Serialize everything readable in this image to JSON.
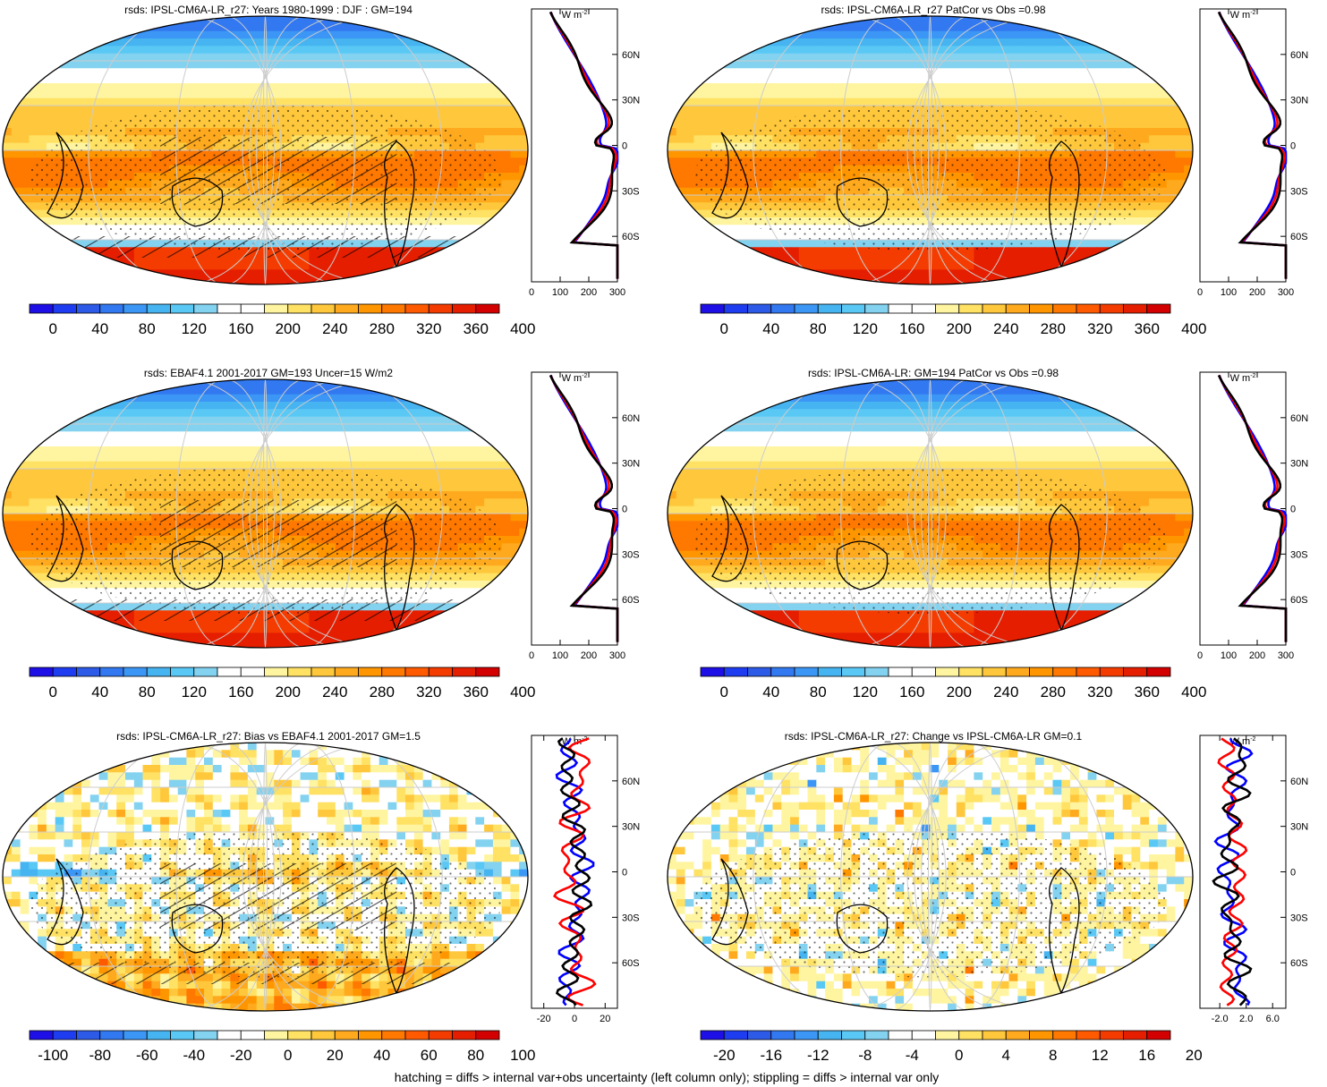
{
  "figure": {
    "footer": "hatching = diffs > internal var+obs uncertainty (left column only); stippling = diffs > internal var only",
    "panels": [
      {
        "title": "rsds: IPSL-CM6A-LR_r27: Years 1980-1999 : DJF : GM=194",
        "field": "abs",
        "hatch": true,
        "colorbar_labels": [
          "0",
          "40",
          "80",
          "120",
          "160",
          "200",
          "240",
          "280",
          "320",
          "360",
          "400"
        ],
        "profile": {
          "unit": "W m",
          "unit_sup": "-2",
          "x_labels": [
            "0",
            "100",
            "200",
            "300"
          ],
          "x_min": 0,
          "x_max": 300,
          "lat_labels": [
            "60N",
            "30N",
            "0",
            "30S",
            "60S"
          ]
        }
      },
      {
        "title": "rsds: IPSL-CM6A-LR_r27 PatCor vs Obs =0.98",
        "field": "abs",
        "hatch": false,
        "colorbar_labels": [
          "0",
          "40",
          "80",
          "120",
          "160",
          "200",
          "240",
          "280",
          "320",
          "360",
          "400"
        ],
        "profile": {
          "unit": "W m",
          "unit_sup": "-2",
          "x_labels": [
            "0",
            "100",
            "200",
            "300"
          ],
          "x_min": 0,
          "x_max": 300,
          "lat_labels": [
            "60N",
            "30N",
            "0",
            "30S",
            "60S"
          ]
        }
      },
      {
        "title": "rsds: EBAF4.1 2001-2017 GM=193 Uncer=15 W/m2",
        "field": "abs",
        "hatch": true,
        "colorbar_labels": [
          "0",
          "40",
          "80",
          "120",
          "160",
          "200",
          "240",
          "280",
          "320",
          "360",
          "400"
        ],
        "profile": {
          "unit": "W m",
          "unit_sup": "-2",
          "x_labels": [
            "0",
            "100",
            "200",
            "300"
          ],
          "x_min": 0,
          "x_max": 300,
          "lat_labels": [
            "60N",
            "30N",
            "0",
            "30S",
            "60S"
          ]
        }
      },
      {
        "title": "rsds: IPSL-CM6A-LR: GM=194 PatCor vs Obs =0.98",
        "field": "abs",
        "hatch": false,
        "colorbar_labels": [
          "0",
          "40",
          "80",
          "120",
          "160",
          "200",
          "240",
          "280",
          "320",
          "360",
          "400"
        ],
        "profile": {
          "unit": "W m",
          "unit_sup": "-2",
          "x_labels": [
            "0",
            "100",
            "200",
            "300"
          ],
          "x_min": 0,
          "x_max": 300,
          "lat_labels": [
            "60N",
            "30N",
            "0",
            "30S",
            "60S"
          ]
        }
      },
      {
        "title": "rsds: IPSL-CM6A-LR_r27: Bias vs EBAF4.1 2001-2017 GM=1.5",
        "field": "bias",
        "hatch": true,
        "colorbar_labels": [
          "-100",
          "-80",
          "-60",
          "-40",
          "-20",
          "0",
          "20",
          "40",
          "60",
          "80",
          "100"
        ],
        "profile": {
          "unit": "W m",
          "unit_sup": "-2",
          "x_labels": [
            "-20",
            "0",
            "20"
          ],
          "x_min": -28,
          "x_max": 28,
          "lat_labels": [
            "60N",
            "30N",
            "0",
            "30S",
            "60S"
          ]
        }
      },
      {
        "title": "rsds: IPSL-CM6A-LR_r27: Change vs IPSL-CM6A-LR GM=0.1",
        "field": "change",
        "hatch": false,
        "colorbar_labels": [
          "-20",
          "-16",
          "-12",
          "-8",
          "-4",
          "0",
          "4",
          "8",
          "12",
          "16",
          "20"
        ],
        "profile": {
          "unit": "W m",
          "unit_sup": "-2",
          "x_labels": [
            "-2.0",
            "2.0",
            "6.0"
          ],
          "x_min": -5,
          "x_max": 8,
          "lat_labels": [
            "60N",
            "30N",
            "0",
            "30S",
            "60S"
          ]
        }
      }
    ],
    "palette": [
      "#1e0fe6",
      "#1e3cf0",
      "#2d5ae6",
      "#3278f0",
      "#3c96f5",
      "#46b4f0",
      "#5ac8f5",
      "#82d2f0",
      "#ffffff",
      "#ffffff",
      "#fff5a0",
      "#ffe164",
      "#ffc83c",
      "#ffaa1e",
      "#ff9600",
      "#ff7800",
      "#ff5a00",
      "#f53c00",
      "#e61e00",
      "#d20000"
    ],
    "profile_colors": {
      "model": "#0000ff",
      "obs": "#ff0000",
      "ref": "#000000"
    }
  }
}
